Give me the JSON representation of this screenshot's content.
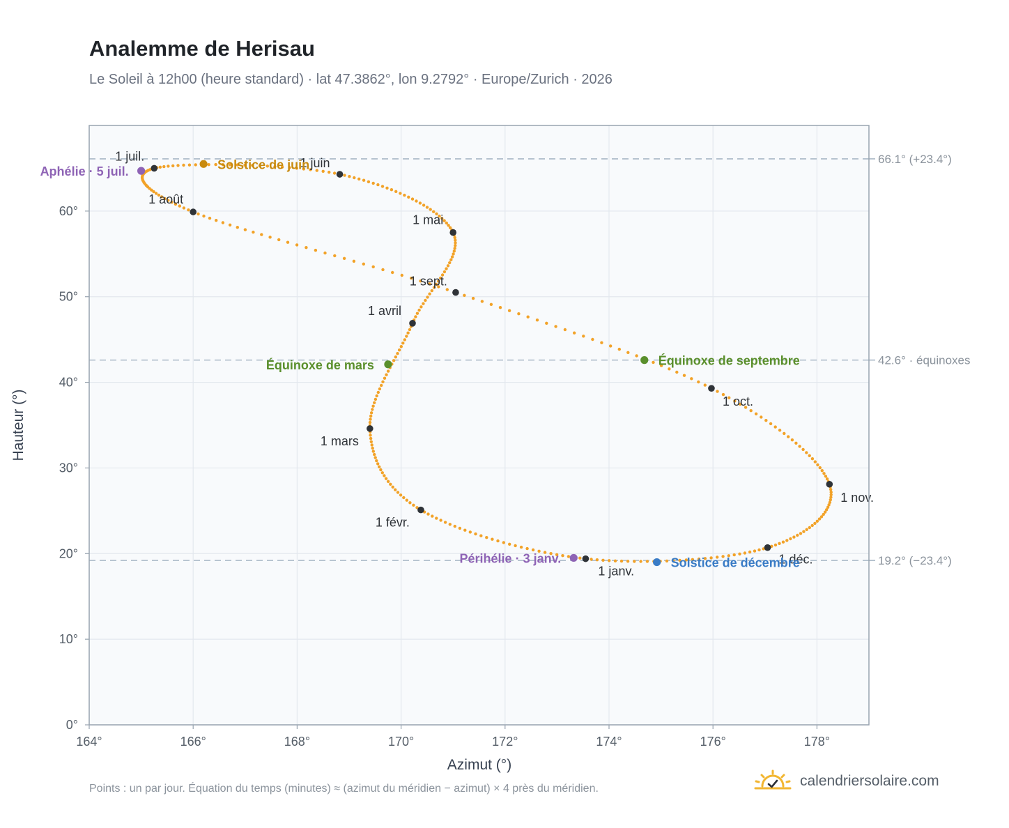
{
  "title": "Analemme de Herisau",
  "subtitle": "Le Soleil à 12h00 (heure standard) · lat 47.3862°, lon 9.2792° · Europe/Zurich · 2026",
  "footnote": "Points : un par jour. Équation du temps (minutes) ≈ (azimut du méridien − azimut) × 4 près du méridien.",
  "brand": {
    "name": "calendriersolaire.com",
    "icon": "sun-check-icon"
  },
  "colors": {
    "curve": "#f2a228",
    "month_marker": "#2f3338",
    "aphelion": "#8e63b5",
    "perihelion": "#8e63b5",
    "solstice_june": "#c88a0e",
    "solstice_december": "#3a7cc6",
    "equinox": "#5a8f2c",
    "reference_line": "#a9b8c6",
    "plot_bg": "#f8fafc",
    "grid": "#e3e8ee",
    "frame": "#98a4b0"
  },
  "chart_data": {
    "type": "scatter",
    "xlabel": "Azimut (°)",
    "ylabel": "Hauteur (°)",
    "xlim": [
      164,
      179
    ],
    "ylim": [
      0,
      70
    ],
    "x_ticks": [
      "164°",
      "166°",
      "168°",
      "170°",
      "172°",
      "174°",
      "176°",
      "178°"
    ],
    "y_ticks": [
      "0°",
      "10°",
      "20°",
      "30°",
      "40°",
      "50°",
      "60°"
    ],
    "grid": true,
    "key_points": [
      {
        "date": "1 janv.",
        "az": 173.55,
        "alt": 19.4
      },
      {
        "date": "1 févr.",
        "az": 170.38,
        "alt": 25.1
      },
      {
        "date": "1 mars",
        "az": 169.4,
        "alt": 34.6
      },
      {
        "date": "1 avril",
        "az": 170.22,
        "alt": 46.9
      },
      {
        "date": "1 mai",
        "az": 171.0,
        "alt": 57.5
      },
      {
        "date": "1 juin",
        "az": 168.82,
        "alt": 64.3
      },
      {
        "date": "1 juil.",
        "az": 165.25,
        "alt": 65.0
      },
      {
        "date": "1 août",
        "az": 166.0,
        "alt": 59.9
      },
      {
        "date": "1 sept.",
        "az": 171.05,
        "alt": 50.5
      },
      {
        "date": "1 oct.",
        "az": 175.97,
        "alt": 39.3
      },
      {
        "date": "1 nov.",
        "az": 178.24,
        "alt": 28.1
      },
      {
        "date": "1 déc.",
        "az": 177.05,
        "alt": 20.7
      }
    ],
    "events": [
      {
        "label": "Aphélie · 5 juil.",
        "az": 165.0,
        "alt": 64.7,
        "color_key": "aphelion"
      },
      {
        "label": "Solstice de juin",
        "az": 166.2,
        "alt": 65.5,
        "color_key": "solstice_june"
      },
      {
        "label": "Équinoxe de mars",
        "az": 169.75,
        "alt": 42.1,
        "color_key": "equinox"
      },
      {
        "label": "Équinoxe de septembre",
        "az": 174.68,
        "alt": 42.6,
        "color_key": "equinox"
      },
      {
        "label": "Périhélie · 3 janv.",
        "az": 173.32,
        "alt": 19.5,
        "color_key": "perihelion"
      },
      {
        "label": "Solstice de décembre",
        "az": 174.92,
        "alt": 19.0,
        "color_key": "solstice_december"
      }
    ],
    "reference_lines": [
      {
        "alt": 66.1,
        "label": "66.1° (+23.4°)"
      },
      {
        "alt": 42.6,
        "label": "42.6° · équinoxes"
      },
      {
        "alt": 19.2,
        "label": "19.2° (−23.4°)"
      }
    ]
  }
}
